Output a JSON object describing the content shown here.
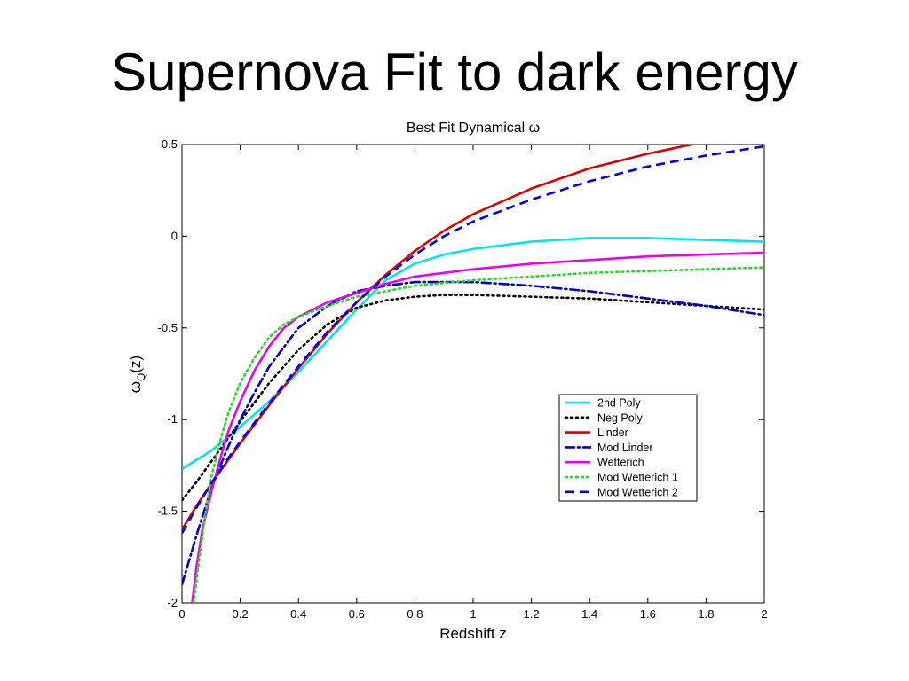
{
  "slide": {
    "title": "Supernova Fit to dark energy"
  },
  "chart_data": {
    "type": "line",
    "title": "Best Fit Dynamical ω",
    "xlabel": "Redshift z",
    "ylabel_main": "ω",
    "ylabel_sub": "Q",
    "ylabel_tail": "(z)",
    "xlim": [
      0,
      2
    ],
    "ylim": [
      -2,
      0.5
    ],
    "x_ticks": [
      0,
      0.2,
      0.4,
      0.6,
      0.8,
      1,
      1.2,
      1.4,
      1.6,
      1.8,
      2
    ],
    "x_tick_labels": [
      "0",
      "0.2",
      "0.4",
      "0.6",
      "0.8",
      "1",
      "1.2",
      "1.4",
      "1.6",
      "1.8",
      "2"
    ],
    "y_ticks": [
      -2,
      -1.5,
      -1,
      -0.5,
      0,
      0.5
    ],
    "y_tick_labels": [
      "-2",
      "-1.5",
      "-1",
      "-0.5",
      "0",
      "0.5"
    ],
    "grid": false,
    "legend_position": "right",
    "series": [
      {
        "name": "2nd Poly",
        "color": "#00e5ee",
        "dash": "solid",
        "x": [
          0,
          0.1,
          0.2,
          0.3,
          0.4,
          0.5,
          0.6,
          0.7,
          0.8,
          0.9,
          1.0,
          1.2,
          1.4,
          1.5,
          1.6,
          1.8,
          2.0
        ],
        "y": [
          -1.27,
          -1.17,
          -1.04,
          -0.9,
          -0.74,
          -0.57,
          -0.4,
          -0.24,
          -0.15,
          -0.1,
          -0.07,
          -0.03,
          -0.01,
          -0.01,
          -0.01,
          -0.02,
          -0.03
        ]
      },
      {
        "name": "Neg Poly",
        "color": "#000000",
        "dash": "dot",
        "x": [
          0,
          0.05,
          0.1,
          0.15,
          0.2,
          0.3,
          0.4,
          0.5,
          0.6,
          0.7,
          0.8,
          0.9,
          1.0,
          1.2,
          1.4,
          1.6,
          1.8,
          2.0
        ],
        "y": [
          -1.44,
          -1.34,
          -1.23,
          -1.12,
          -1.01,
          -0.8,
          -0.62,
          -0.48,
          -0.39,
          -0.35,
          -0.33,
          -0.32,
          -0.32,
          -0.33,
          -0.34,
          -0.36,
          -0.38,
          -0.4
        ]
      },
      {
        "name": "Linder",
        "color": "#e00000",
        "dash": "solid",
        "x": [
          0,
          0.05,
          0.1,
          0.15,
          0.2,
          0.3,
          0.4,
          0.5,
          0.6,
          0.7,
          0.8,
          0.9,
          1.0,
          1.2,
          1.4,
          1.6,
          1.75
        ],
        "y": [
          -1.6,
          -1.47,
          -1.35,
          -1.24,
          -1.13,
          -0.92,
          -0.72,
          -0.53,
          -0.36,
          -0.21,
          -0.08,
          0.03,
          0.12,
          0.26,
          0.37,
          0.45,
          0.5
        ]
      },
      {
        "name": "Mod Linder",
        "color": "#0000cc",
        "dash": "dashdot",
        "x": [
          0,
          0.05,
          0.1,
          0.15,
          0.2,
          0.25,
          0.3,
          0.4,
          0.5,
          0.6,
          0.7,
          0.8,
          0.9,
          1.0,
          1.2,
          1.4,
          1.6,
          1.8,
          2.0
        ],
        "y": [
          -1.9,
          -1.63,
          -1.38,
          -1.18,
          -1.0,
          -0.85,
          -0.71,
          -0.5,
          -0.38,
          -0.3,
          -0.27,
          -0.25,
          -0.25,
          -0.25,
          -0.27,
          -0.3,
          -0.34,
          -0.38,
          -0.43
        ]
      },
      {
        "name": "Wetterich",
        "color": "#ee00ee",
        "dash": "solid",
        "x": [
          0.035,
          0.05,
          0.07,
          0.1,
          0.13,
          0.16,
          0.2,
          0.25,
          0.3,
          0.35,
          0.4,
          0.5,
          0.6,
          0.7,
          0.8,
          1.0,
          1.2,
          1.4,
          1.6,
          1.8,
          2.0
        ],
        "y": [
          -2.0,
          -1.8,
          -1.6,
          -1.4,
          -1.22,
          -1.06,
          -0.9,
          -0.73,
          -0.6,
          -0.5,
          -0.44,
          -0.36,
          -0.31,
          -0.26,
          -0.22,
          -0.18,
          -0.15,
          -0.13,
          -0.11,
          -0.1,
          -0.09
        ]
      },
      {
        "name": "Mod Wetterich 1",
        "color": "#22dd22",
        "dash": "dot",
        "x": [
          0.04,
          0.06,
          0.08,
          0.1,
          0.13,
          0.16,
          0.2,
          0.25,
          0.3,
          0.35,
          0.4,
          0.5,
          0.6,
          0.7,
          0.8,
          1.0,
          1.2,
          1.4,
          1.6,
          1.8,
          2.0
        ],
        "y": [
          -2.0,
          -1.75,
          -1.52,
          -1.32,
          -1.12,
          -0.96,
          -0.8,
          -0.66,
          -0.55,
          -0.48,
          -0.44,
          -0.38,
          -0.33,
          -0.3,
          -0.27,
          -0.24,
          -0.22,
          -0.2,
          -0.19,
          -0.18,
          -0.17
        ]
      },
      {
        "name": "Mod Wetterich 2",
        "color": "#0000ee",
        "dash": "dash",
        "x": [
          0,
          0.05,
          0.1,
          0.15,
          0.2,
          0.3,
          0.4,
          0.5,
          0.6,
          0.7,
          0.8,
          0.9,
          1.0,
          1.2,
          1.4,
          1.6,
          1.8,
          2.0
        ],
        "y": [
          -1.62,
          -1.48,
          -1.35,
          -1.23,
          -1.12,
          -0.91,
          -0.71,
          -0.52,
          -0.36,
          -0.22,
          -0.1,
          0.0,
          0.08,
          0.2,
          0.3,
          0.38,
          0.44,
          0.49
        ]
      }
    ]
  }
}
